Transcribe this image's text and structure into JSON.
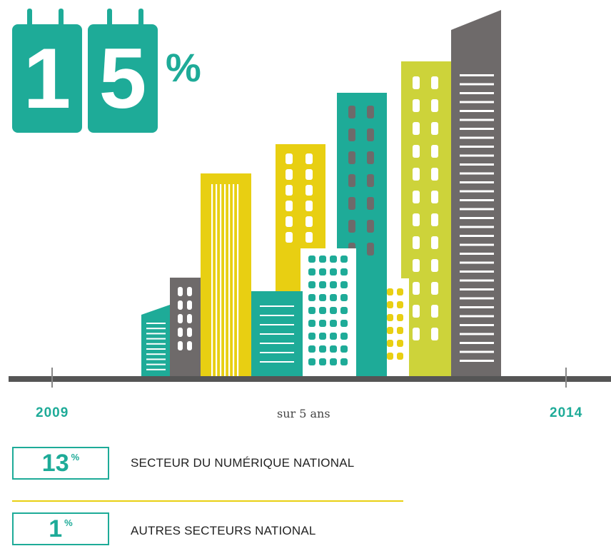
{
  "headline": {
    "digits": [
      "1",
      "5"
    ],
    "percent_sign": "%"
  },
  "timeline": {
    "start_year": "2009",
    "end_year": "2014",
    "period_label": "sur 5 ans"
  },
  "stats": [
    {
      "value": "13",
      "unit": "%",
      "label": "SECTEUR DU NUMÉRIQUE NATIONAL"
    },
    {
      "value": "1",
      "unit": "%",
      "label": "AUTRES SECTEURS NATIONAL"
    }
  ],
  "colors": {
    "teal": "#1eab98",
    "yellow": "#e8cf12",
    "lime": "#cdd33a",
    "gray": "#6e6a6a",
    "baseline": "#555555",
    "divider": "#e8cf12"
  }
}
